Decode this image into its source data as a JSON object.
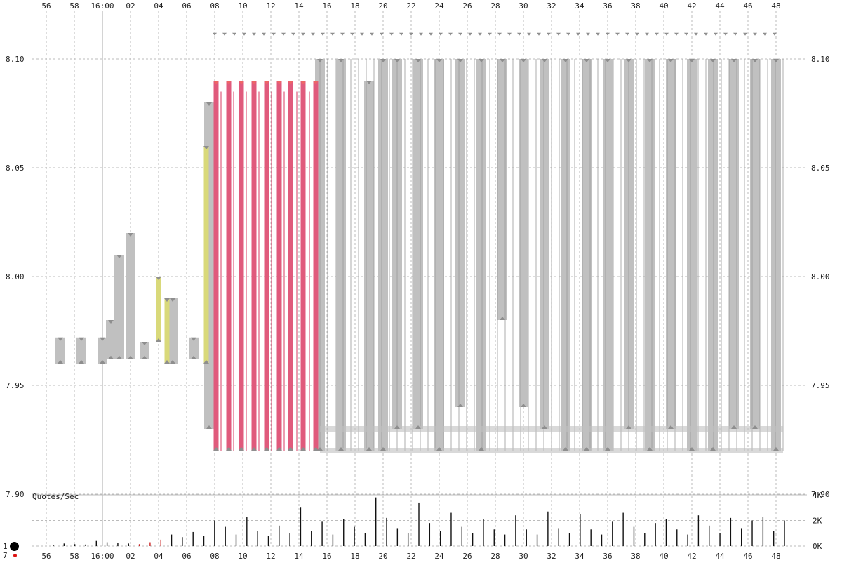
{
  "chart_data": [
    {
      "type": "area",
      "subtype": "quote-stuffing price ladder (bid/ask bands)",
      "title": "",
      "xlabel": "",
      "ylabel": "",
      "x_tick_labels": [
        "56",
        "58",
        "16:00",
        "02",
        "04",
        "06",
        "08",
        "10",
        "12",
        "14",
        "16",
        "18",
        "20",
        "22",
        "24",
        "26",
        "28",
        "30",
        "32",
        "34",
        "36",
        "38",
        "40",
        "42",
        "44",
        "46",
        "48"
      ],
      "y_tick_labels": [
        "8.10",
        "8.05",
        "8.00",
        "7.95",
        "7.90"
      ],
      "ylim": [
        7.9,
        8.12
      ],
      "y_ticks": [
        8.1,
        8.05,
        8.0,
        7.95,
        7.9
      ],
      "grid": true,
      "colors": {
        "band": "#c0c0c0",
        "band_marker": "#8e8e8e",
        "red_band": "#e05a7c",
        "red_marker": "#ee6666",
        "yellow_band": "#d9d97a",
        "grid": "#bbbbbb"
      },
      "series": [
        {
          "name": "",
          "color": "gray",
          "bands": [
            {
              "x": 57.0,
              "low": 7.96,
              "high": 7.972
            },
            {
              "x": 58.5,
              "low": 7.96,
              "high": 7.972
            },
            {
              "x": 0.0,
              "low": 7.96,
              "high": 7.972
            },
            {
              "x": 0.6,
              "low": 7.962,
              "high": 7.98
            },
            {
              "x": 1.2,
              "low": 7.962,
              "high": 8.01
            },
            {
              "x": 2.0,
              "low": 7.962,
              "high": 8.02
            },
            {
              "x": 3.0,
              "low": 7.962,
              "high": 7.97
            },
            {
              "x": 5.0,
              "low": 7.96,
              "high": 7.99
            },
            {
              "x": 6.5,
              "low": 7.962,
              "high": 7.972
            },
            {
              "x": 7.6,
              "low": 7.93,
              "high": 8.08
            },
            {
              "x": 15.5,
              "low": 7.92,
              "high": 8.1
            },
            {
              "x": 17.0,
              "low": 7.92,
              "high": 8.1
            },
            {
              "x": 19.0,
              "low": 7.92,
              "high": 8.09
            },
            {
              "x": 20.0,
              "low": 7.92,
              "high": 8.1
            },
            {
              "x": 21.0,
              "low": 7.93,
              "high": 8.1
            },
            {
              "x": 22.5,
              "low": 7.93,
              "high": 8.1
            },
            {
              "x": 24.0,
              "low": 7.92,
              "high": 8.1
            },
            {
              "x": 25.5,
              "low": 7.94,
              "high": 8.1
            },
            {
              "x": 27.0,
              "low": 7.92,
              "high": 8.1
            },
            {
              "x": 28.5,
              "low": 7.98,
              "high": 8.1
            },
            {
              "x": 30.0,
              "low": 7.94,
              "high": 8.1
            },
            {
              "x": 31.5,
              "low": 7.93,
              "high": 8.1
            },
            {
              "x": 33.0,
              "low": 7.92,
              "high": 8.1
            },
            {
              "x": 34.5,
              "low": 7.92,
              "high": 8.1
            },
            {
              "x": 36.0,
              "low": 7.92,
              "high": 8.1
            },
            {
              "x": 37.5,
              "low": 7.93,
              "high": 8.1
            },
            {
              "x": 39.0,
              "low": 7.92,
              "high": 8.1
            },
            {
              "x": 40.5,
              "low": 7.93,
              "high": 8.1
            },
            {
              "x": 42.0,
              "low": 7.92,
              "high": 8.1
            },
            {
              "x": 43.5,
              "low": 7.92,
              "high": 8.1
            },
            {
              "x": 45.0,
              "low": 7.93,
              "high": 8.1
            },
            {
              "x": 46.5,
              "low": 7.93,
              "high": 8.1
            },
            {
              "x": 48.0,
              "low": 7.92,
              "high": 8.1
            }
          ]
        },
        {
          "name": "",
          "color": "red",
          "bands": [
            {
              "x": 8.1,
              "low": 7.92,
              "high": 8.09
            },
            {
              "x": 9.0,
              "low": 7.92,
              "high": 8.09
            },
            {
              "x": 9.9,
              "low": 7.92,
              "high": 8.09
            },
            {
              "x": 10.8,
              "low": 7.92,
              "high": 8.09
            },
            {
              "x": 11.7,
              "low": 7.92,
              "high": 8.09
            },
            {
              "x": 12.6,
              "low": 7.92,
              "high": 8.09
            },
            {
              "x": 13.4,
              "low": 7.92,
              "high": 8.09
            },
            {
              "x": 14.3,
              "low": 7.92,
              "high": 8.09
            },
            {
              "x": 15.2,
              "low": 7.92,
              "high": 8.09
            }
          ]
        },
        {
          "name": "",
          "color": "yellow",
          "bands": [
            {
              "x": 4.0,
              "low": 7.97,
              "high": 8.0
            },
            {
              "x": 4.6,
              "low": 7.96,
              "high": 7.99
            },
            {
              "x": 7.4,
              "low": 7.96,
              "high": 8.06
            }
          ]
        }
      ]
    },
    {
      "type": "bar",
      "title": "",
      "ylabel": "Quotes/Sec",
      "y_tick_labels": [
        "4K",
        "2K",
        "0K"
      ],
      "ylim": [
        0,
        4000
      ],
      "grid": true,
      "colors": {
        "bar": "#111111",
        "bar_highlight": "#cc2222"
      },
      "x_tick_labels": [
        "56",
        "58",
        "16:00",
        "02",
        "04",
        "06",
        "08",
        "10",
        "12",
        "14",
        "16",
        "18",
        "20",
        "22",
        "24",
        "26",
        "28",
        "30",
        "32",
        "34",
        "36",
        "38",
        "40",
        "42",
        "44",
        "46",
        "48"
      ],
      "legend": {
        "dot_large_label": "1",
        "dot_small_label": "7"
      },
      "values": [
        100,
        200,
        150,
        120,
        400,
        300,
        250,
        200,
        150,
        300,
        500,
        900,
        700,
        1100,
        800,
        2000,
        1500,
        900,
        2300,
        1200,
        800,
        1600,
        1000,
        3000,
        1200,
        1900,
        900,
        2100,
        1500,
        1000,
        3800,
        2200,
        1400,
        1000,
        3400,
        1800,
        1200,
        2600,
        1500,
        1000,
        2100,
        1300,
        900,
        2400,
        1300,
        900,
        2700,
        1400,
        1000,
        2500,
        1300,
        900,
        1900,
        2600,
        1500,
        1000,
        1800,
        2100,
        1300,
        900,
        2400,
        1600,
        1000,
        2200,
        1400,
        2000,
        2300,
        1200,
        2000
      ]
    }
  ]
}
